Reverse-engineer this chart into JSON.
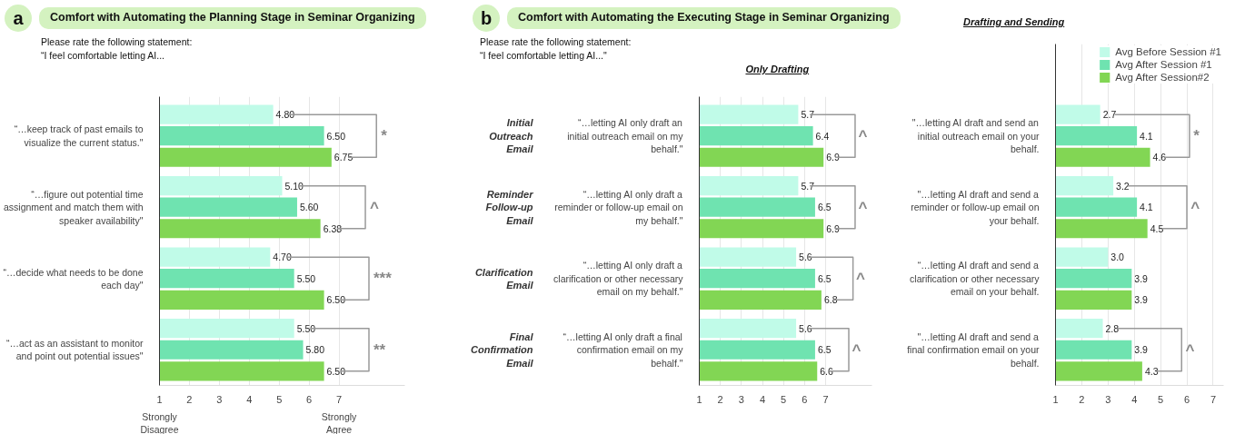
{
  "chart_data": [
    {
      "type": "bar",
      "orientation": "horizontal",
      "title": "Comfort with Automating the Planning Stage in Seminar Organizing",
      "subtitle": "Please rate the following statement: “I feel comfortable letting AI...",
      "categories": [
        "“…keep track of past emails to visualize the current status.\"",
        "“…figure out potential time assignment and match them with speaker availability\"",
        "“…decide what needs to be done each day\"",
        "“…act as an assistant to monitor and point out potential issues\""
      ],
      "series": [
        {
          "color": "#c0fbe8",
          "values": [
            4.8,
            5.1,
            4.7,
            5.5
          ],
          "value_labels": [
            "4.80",
            "5.10",
            "4.70",
            "5.50"
          ]
        },
        {
          "color": "#6fe3b0",
          "values": [
            6.5,
            5.6,
            5.5,
            5.8
          ],
          "value_labels": [
            "6.50",
            "5.60",
            "5.50",
            "5.80"
          ]
        },
        {
          "color": "#82d654",
          "values": [
            6.75,
            6.38,
            6.5,
            6.5
          ],
          "value_labels": [
            "6.75",
            "6.38",
            "6.50",
            "6.50"
          ]
        }
      ],
      "xlim": [
        1,
        9.2
      ],
      "xticks": [
        1,
        2,
        3,
        4,
        5,
        6,
        7
      ],
      "grid": "x",
      "legend": false,
      "annotations": [
        "a",
        "Strongly Disagree",
        "Strongly Agree",
        "*",
        "^",
        "***",
        "**"
      ]
    },
    {
      "type": "bar",
      "orientation": "horizontal",
      "title": "Comfort with Automating the Executing Stage in Seminar Organizing",
      "subtitle": "Please rate the following statement: “I feel comfortable letting AI...\"",
      "categories": [
        "“…letting AI only draft an initial outreach email on my behalf.\"",
        "“…letting AI only draft a reminder or follow-up email on my behalf.\"",
        "“…letting AI only draft a clarification or other necessary email on my behalf.\"",
        "“…letting AI only draft a final confirmation email on my behalf.\""
      ],
      "series": [
        {
          "color": "#c0fbe8",
          "values": [
            5.7,
            5.7,
            5.6,
            5.6
          ],
          "value_labels": [
            "5.7",
            "5.7",
            "5.6",
            "5.6"
          ]
        },
        {
          "color": "#6fe3b0",
          "values": [
            6.4,
            6.5,
            6.5,
            6.5
          ],
          "value_labels": [
            "6.4",
            "6.5",
            "6.5",
            "6.5"
          ]
        },
        {
          "color": "#82d654",
          "values": [
            6.9,
            6.9,
            6.8,
            6.6
          ],
          "value_labels": [
            "6.9",
            "6.9",
            "6.8",
            "6.6"
          ]
        }
      ],
      "xlim": [
        1,
        9.2
      ],
      "xticks": [
        1,
        2,
        3,
        4,
        5,
        6,
        7
      ],
      "grid": "x",
      "legend": false,
      "annotations": [
        "b",
        "Only Drafting",
        "Initial Outreach Email",
        "Reminder Follow-up Email",
        "Clarification Email",
        "Final Confirmation Email",
        "^",
        "^",
        "^",
        "^"
      ]
    },
    {
      "type": "bar",
      "orientation": "horizontal",
      "title": "Drafting and Sending",
      "categories": [
        "\"…letting AI draft and send an initial outreach email on your behalf.",
        "\"…letting AI draft and send a reminder or follow-up email on your behalf.",
        "“…letting AI draft and send a clarification or other necessary email on your behalf.",
        "\"…letting AI draft and send a final confirmation email on your behalf."
      ],
      "series": [
        {
          "name": "Avg Before Session #1",
          "color": "#c0fbe8",
          "values": [
            2.7,
            3.2,
            3.0,
            2.8
          ],
          "value_labels": [
            "2.7",
            "3.2",
            "3.0",
            "2.8"
          ]
        },
        {
          "name": "Avg After Session #1",
          "color": "#6fe3b0",
          "values": [
            4.1,
            4.1,
            3.9,
            3.9
          ],
          "value_labels": [
            "4.1",
            "4.1",
            "3.9",
            "3.9"
          ]
        },
        {
          "name": "Avg After Session#2",
          "color": "#82d654",
          "values": [
            4.6,
            4.5,
            3.9,
            4.3
          ],
          "value_labels": [
            "4.6",
            "4.5",
            "3.9",
            "4.3"
          ]
        }
      ],
      "xlim": [
        1,
        7.4
      ],
      "xticks": [
        1,
        2,
        3,
        4,
        5,
        6,
        7
      ],
      "grid": "x",
      "legend": "top right",
      "annotations": [
        "*",
        "^",
        "^"
      ]
    }
  ]
}
